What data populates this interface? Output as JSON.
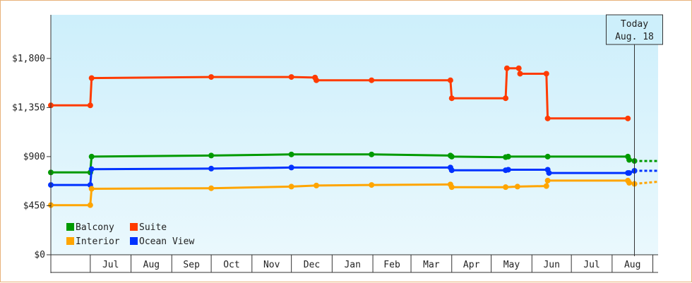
{
  "chart_data": {
    "type": "line",
    "title": "",
    "xlabel": "",
    "ylabel": "",
    "ylim": [
      0,
      2200
    ],
    "y_ticks": [
      0,
      450,
      900,
      1350,
      1800
    ],
    "y_tick_labels": [
      "$0",
      "$450",
      "$900",
      "$1,350",
      "$1,800"
    ],
    "x_axis": {
      "start": "2019-06-01",
      "end": "2020-09-05",
      "months": [
        {
          "label": "Jul",
          "start": "2019-07-01"
        },
        {
          "label": "Aug",
          "start": "2019-08-01"
        },
        {
          "label": "Sep",
          "start": "2019-09-01"
        },
        {
          "label": "Oct",
          "start": "2019-10-01"
        },
        {
          "label": "Nov",
          "start": "2019-11-01"
        },
        {
          "label": "Dec",
          "start": "2019-12-01"
        },
        {
          "label": "Jan",
          "start": "2020-01-01"
        },
        {
          "label": "Feb",
          "start": "2020-02-01"
        },
        {
          "label": "Mar",
          "start": "2020-03-01"
        },
        {
          "label": "Apr",
          "start": "2020-04-01"
        },
        {
          "label": "May",
          "start": "2020-05-01"
        },
        {
          "label": "Jun",
          "start": "2020-06-01"
        },
        {
          "label": "Jul",
          "start": "2020-07-01"
        },
        {
          "label": "Aug",
          "start": "2020-08-01"
        },
        {
          "label": "",
          "start": "2020-09-01"
        }
      ]
    },
    "today": {
      "line1": "Today",
      "line2": "Aug. 18",
      "date": "2020-08-18"
    },
    "grid": false,
    "background": {
      "top": "#cdeffb",
      "bottom": "#eaf8fd"
    },
    "legend": {
      "placement": "bottom-left"
    },
    "series": [
      {
        "name": "Suite",
        "color": "#ff3b00",
        "forecast": false,
        "points": [
          [
            "2019-06-01",
            1370
          ],
          [
            "2019-07-01",
            1370
          ],
          [
            "2019-07-02",
            1620
          ],
          [
            "2019-10-01",
            1630
          ],
          [
            "2019-12-01",
            1630
          ],
          [
            "2019-12-19",
            1625
          ],
          [
            "2019-12-20",
            1600
          ],
          [
            "2020-01-31",
            1600
          ],
          [
            "2020-03-31",
            1600
          ],
          [
            "2020-04-01",
            1435
          ],
          [
            "2020-05-12",
            1435
          ],
          [
            "2020-05-13",
            1710
          ],
          [
            "2020-05-22",
            1710
          ],
          [
            "2020-05-23",
            1660
          ],
          [
            "2020-06-12",
            1660
          ],
          [
            "2020-06-13",
            1250
          ],
          [
            "2020-08-13",
            1250
          ]
        ]
      },
      {
        "name": "Balcony",
        "color": "#009a00",
        "forecast": true,
        "points": [
          [
            "2019-06-01",
            755
          ],
          [
            "2019-07-01",
            755
          ],
          [
            "2019-07-02",
            900
          ],
          [
            "2019-10-01",
            910
          ],
          [
            "2019-12-01",
            920
          ],
          [
            "2020-01-31",
            920
          ],
          [
            "2020-03-31",
            910
          ],
          [
            "2020-04-01",
            900
          ],
          [
            "2020-05-12",
            895
          ],
          [
            "2020-05-14",
            900
          ],
          [
            "2020-06-13",
            900
          ],
          [
            "2020-08-13",
            900
          ],
          [
            "2020-08-14",
            870
          ],
          [
            "2020-08-18",
            860
          ],
          [
            "2020-09-05",
            860
          ]
        ]
      },
      {
        "name": "Ocean View",
        "color": "#0032ff",
        "forecast": true,
        "points": [
          [
            "2019-06-01",
            640
          ],
          [
            "2019-07-01",
            640
          ],
          [
            "2019-07-02",
            785
          ],
          [
            "2019-10-01",
            790
          ],
          [
            "2019-12-01",
            800
          ],
          [
            "2020-03-31",
            800
          ],
          [
            "2020-04-01",
            775
          ],
          [
            "2020-05-12",
            775
          ],
          [
            "2020-05-14",
            780
          ],
          [
            "2020-06-13",
            780
          ],
          [
            "2020-06-14",
            750
          ],
          [
            "2020-08-13",
            750
          ],
          [
            "2020-08-14",
            750
          ],
          [
            "2020-08-18",
            770
          ],
          [
            "2020-09-05",
            770
          ]
        ]
      },
      {
        "name": "Interior",
        "color": "#ffa500",
        "forecast": true,
        "points": [
          [
            "2019-06-01",
            455
          ],
          [
            "2019-07-01",
            455
          ],
          [
            "2019-07-02",
            605
          ],
          [
            "2019-10-01",
            610
          ],
          [
            "2019-12-01",
            625
          ],
          [
            "2019-12-20",
            635
          ],
          [
            "2020-01-31",
            640
          ],
          [
            "2020-03-31",
            645
          ],
          [
            "2020-04-01",
            620
          ],
          [
            "2020-05-12",
            620
          ],
          [
            "2020-05-21",
            625
          ],
          [
            "2020-06-12",
            630
          ],
          [
            "2020-06-13",
            680
          ],
          [
            "2020-08-13",
            680
          ],
          [
            "2020-08-14",
            660
          ],
          [
            "2020-08-18",
            650
          ],
          [
            "2020-09-05",
            670
          ]
        ]
      }
    ]
  },
  "legend_order": [
    "Balcony",
    "Suite",
    "Interior",
    "Ocean View"
  ]
}
